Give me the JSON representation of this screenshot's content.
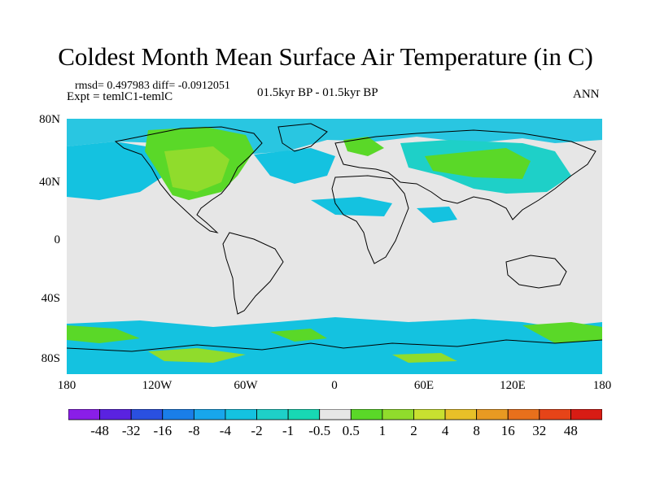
{
  "title": "Coldest Month Mean Surface Air Temperature (in C)",
  "stats_text": "rmsd= 0.497983  diff= -0.0912051",
  "expt_text": "Expt = temlC1-temlC",
  "period_text": "01.5kyr BP - 01.5kyr BP",
  "season_text": "ANN",
  "y_axis": {
    "ticks": [
      "80N",
      "40N",
      "0",
      "40S",
      "80S"
    ]
  },
  "x_axis": {
    "ticks": [
      "180",
      "120W",
      "60W",
      "0",
      "60E",
      "120E",
      "180"
    ]
  },
  "colorbar": {
    "labels": [
      "-48",
      "-32",
      "-16",
      "-8",
      "-4",
      "-2",
      "-1",
      "-0.5",
      "0.5",
      "1",
      "2",
      "4",
      "8",
      "16",
      "32",
      "48"
    ],
    "colors": [
      "#8a1ee8",
      "#5a22e0",
      "#2a50e0",
      "#1a7ee8",
      "#18a6ec",
      "#14c2e0",
      "#1ed0c8",
      "#18d8b4",
      "#e6e6e6",
      "#5ad828",
      "#90dc2c",
      "#c8e030",
      "#e8c028",
      "#e89a22",
      "#e8701c",
      "#e64418",
      "#d81c14"
    ]
  },
  "map_colors": {
    "ocean": "#e6e6e6",
    "cyan": "#14c2e0",
    "teal": "#1ed0c8",
    "green": "#5ad828",
    "lime": "#90dc2c",
    "coast": "#000000"
  }
}
